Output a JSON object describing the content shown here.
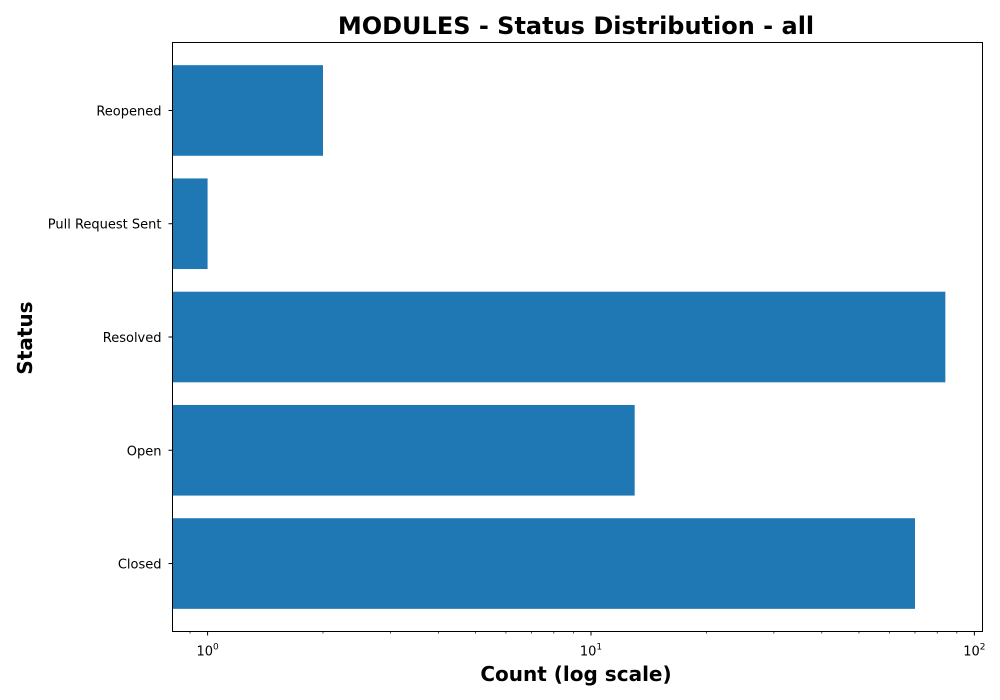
{
  "chart_data": {
    "type": "bar",
    "orientation": "horizontal",
    "title": "MODULES - Status Distribution - all",
    "xlabel": "Count (log scale)",
    "ylabel": "Status",
    "x_scale": "log",
    "xlim": [
      0.81,
      105
    ],
    "categories": [
      "Closed",
      "Open",
      "Resolved",
      "Pull Request Sent",
      "Reopened"
    ],
    "series": [
      {
        "values": [
          70,
          13,
          84,
          1,
          2
        ]
      }
    ],
    "x_ticks": [
      {
        "base": "10",
        "exp": "0",
        "value": 1
      },
      {
        "base": "10",
        "exp": "1",
        "value": 10
      },
      {
        "base": "10",
        "exp": "2",
        "value": 100
      }
    ],
    "bar_color": "#1f77b4",
    "grid": false,
    "legend": "none"
  }
}
